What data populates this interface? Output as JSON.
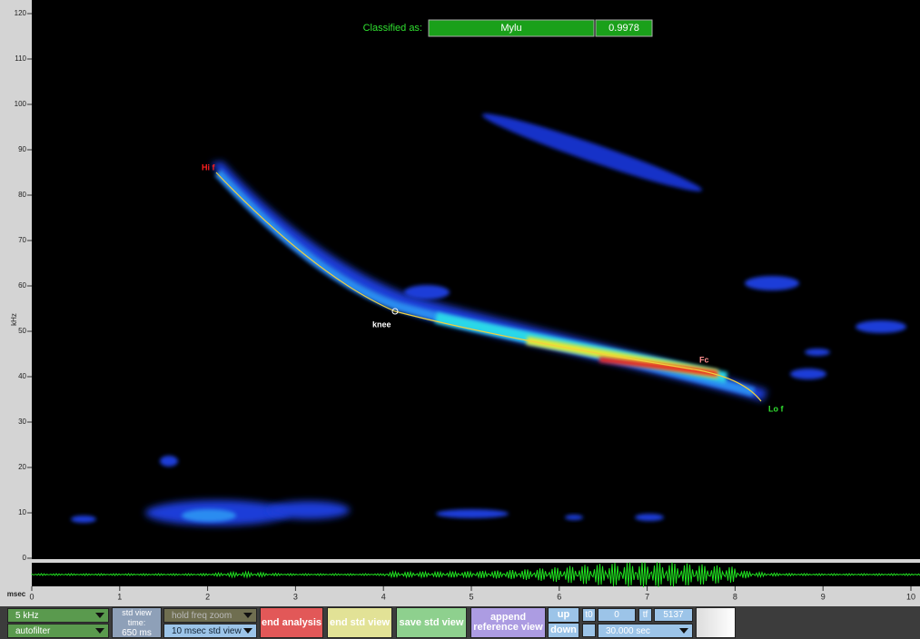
{
  "classification": {
    "label": "Classified as:",
    "species": "Mylu",
    "score": "0.9978"
  },
  "spectrogram": {
    "y_unit": "kHz",
    "x_unit": "msec",
    "y_ticks": [
      "0",
      "10",
      "20",
      "30",
      "40",
      "50",
      "60",
      "70",
      "80",
      "90",
      "100",
      "110",
      "120"
    ],
    "x_ticks": [
      "0",
      "1",
      "2",
      "3",
      "4",
      "5",
      "6",
      "7",
      "8",
      "9",
      "10"
    ],
    "annotations": {
      "high_freq": "Hi f",
      "knee": "knee",
      "char_freq": "Fc",
      "low_freq": "Lo f"
    }
  },
  "controls": {
    "freq_filter": "5 kHz",
    "filter_mode": "autofilter",
    "std_view_time": "std view time:",
    "std_view_value": "650 ms",
    "zoom_mode": "hold freq zoom",
    "std_view_mode": "10 msec std view",
    "end_analysis": "end analysis",
    "end_std_view": "end std view",
    "save_std_view": "save std view",
    "append_reference_view": "append reference view",
    "up": "up",
    "down": "down",
    "t0_label": "t0",
    "t0_value": "0",
    "tf_label": "tf",
    "tf_value": "5137",
    "duration": "30.000 sec"
  }
}
